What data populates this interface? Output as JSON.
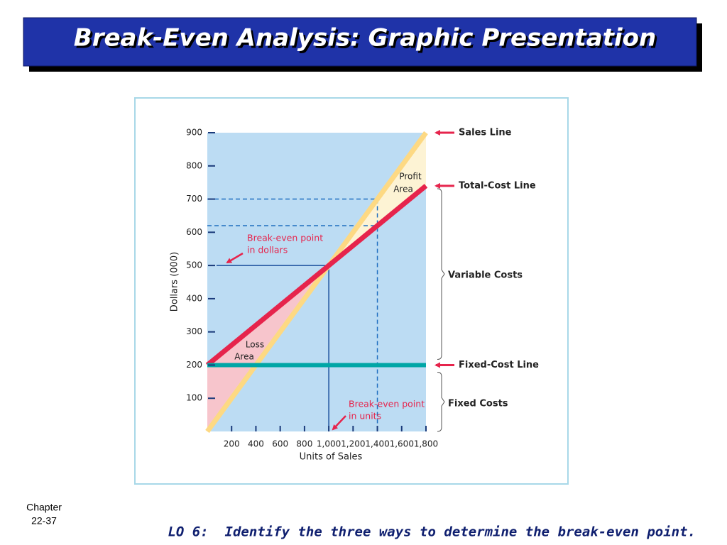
{
  "title": "Break-Even Analysis: Graphic Presentation",
  "footer": {
    "chapter": [
      "Chapter",
      "22-37"
    ],
    "objective": "LO 6:  Identify the three ways to determine the break-even point."
  },
  "chart_data": {
    "type": "line",
    "x": [
      0,
      1800
    ],
    "series": [
      {
        "name": "Sales Line",
        "color": "#fdd983",
        "values": [
          0,
          900
        ]
      },
      {
        "name": "Total-Cost Line",
        "color": "#e6244c",
        "values": [
          200,
          740
        ]
      },
      {
        "name": "Fixed-Cost Line",
        "color": "#00a6a6",
        "values": [
          200,
          200
        ]
      }
    ],
    "xlim": [
      0,
      1800
    ],
    "xticks": [
      200,
      400,
      600,
      800,
      {
        "value": 1000,
        "label": "1,000"
      },
      {
        "value": 1200,
        "label": "1,200"
      },
      {
        "value": 1400,
        "label": "1,400"
      },
      {
        "value": 1600,
        "label": "1,600"
      },
      {
        "value": 1800,
        "label": "1,800"
      }
    ],
    "ylim": [
      0,
      900
    ],
    "yticks": [
      100,
      200,
      300,
      400,
      500,
      600,
      700,
      800,
      900
    ],
    "x_label": "Units of Sales",
    "y_label": "Dollars (000)",
    "break_even_point": {
      "x": 1000,
      "y": 500
    },
    "dashed_guides": {
      "x": 1400,
      "y": [
        700,
        620
      ]
    },
    "annotations": {
      "variable_costs": "Variable Costs",
      "fixed_costs": "Fixed Costs",
      "profit_area": [
        "Profit",
        "Area"
      ],
      "loss_area": [
        "Loss",
        "Area"
      ],
      "break_even_dollars": [
        "Break-even point",
        "in dollars"
      ],
      "break_even_units": [
        "Break-even point",
        "in units"
      ]
    },
    "plot_background": "#bcdcf3",
    "loss_color": "#f7c5cc",
    "profit_color": "#fdf3d4"
  }
}
